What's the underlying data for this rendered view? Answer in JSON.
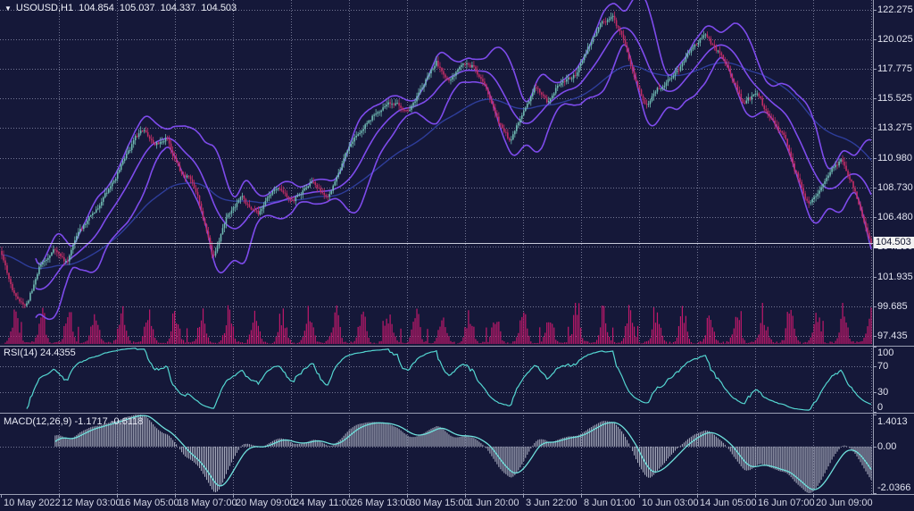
{
  "window": {
    "background": "#151839"
  },
  "header": {
    "dropdown_icon": "▼",
    "symbol_label": "USOUSD,H1",
    "open": "104.854",
    "high": "105.037",
    "low": "104.337",
    "close": "104.503"
  },
  "price_axis": {
    "labels": [
      "122.275",
      "120.025",
      "117.775",
      "115.525",
      "113.275",
      "110.980",
      "108.730",
      "106.480",
      "104.230",
      "101.935",
      "99.685",
      "97.435"
    ],
    "current_price": "104.503"
  },
  "rsi_panel": {
    "label": "RSI(14)",
    "value": "24.4355",
    "scale": [
      "100",
      "70",
      "30",
      "0"
    ],
    "levels": [
      70,
      30
    ]
  },
  "macd_panel": {
    "label": "MACD(12,26,9)",
    "main_value": "-1.1717",
    "signal_value": "-0.6118",
    "scale": [
      "1.4013",
      "0.00",
      "-2.0366"
    ]
  },
  "time_axis": {
    "labels": [
      "10 May 2022",
      "12 May 03:00",
      "16 May 05:00",
      "18 May 07:00",
      "20 May 09:00",
      "24 May 11:00",
      "26 May 13:00",
      "30 May 15:00",
      "1 Jun 20:00",
      "3 Jun 22:00",
      "8 Jun 01:00",
      "10 Jun 03:00",
      "14 Jun 05:00",
      "16 Jun 07:00",
      "20 Jun 09:00"
    ]
  },
  "colors": {
    "background": "#151839",
    "grid": "#8d91ac",
    "separator": "#9b9fb4",
    "axis_text": "#e2e4f0",
    "candle_up": "#6fbab2",
    "candle_down": "#c22d66",
    "volume": "#c0196b",
    "bollinger": "#7e4bec",
    "slow_ma": "#2e3d9a",
    "rsi_line": "#54d6d1",
    "macd_signal": "#6fe0dc",
    "macd_hist": "#a6aabc",
    "bid_line": "#c7cada",
    "badge_bg": "#f2f2f2",
    "badge_text": "#10142e"
  },
  "chart_data": {
    "type": "candlestick",
    "symbol": "USOUSD",
    "timeframe": "H1",
    "title": "USOUSD,H1 104.854 105.037 104.337 104.503",
    "ohlc_current": {
      "open": 104.854,
      "high": 105.037,
      "low": 104.337,
      "close": 104.503
    },
    "price_ticks": [
      122.275,
      120.025,
      117.775,
      115.525,
      113.275,
      110.98,
      108.73,
      106.48,
      104.23,
      101.935,
      99.685,
      97.435
    ],
    "price_axis_range": [
      97.435,
      122.275
    ],
    "time_ticks": [
      "10 May 2022",
      "12 May 03:00",
      "16 May 05:00",
      "18 May 07:00",
      "20 May 09:00",
      "24 May 11:00",
      "26 May 13:00",
      "30 May 15:00",
      "1 Jun 20:00",
      "3 Jun 22:00",
      "8 Jun 01:00",
      "10 Jun 03:00",
      "14 Jun 05:00",
      "16 Jun 07:00",
      "20 Jun 09:00"
    ],
    "close_path": {
      "t": [
        0,
        0.012,
        0.027,
        0.045,
        0.06,
        0.075,
        0.09,
        0.11,
        0.13,
        0.148,
        0.163,
        0.176,
        0.19,
        0.205,
        0.218,
        0.23,
        0.243,
        0.258,
        0.275,
        0.295,
        0.315,
        0.335,
        0.355,
        0.375,
        0.395,
        0.41,
        0.425,
        0.44,
        0.455,
        0.468,
        0.483,
        0.5,
        0.515,
        0.53,
        0.545,
        0.558,
        0.572,
        0.585,
        0.6,
        0.613,
        0.628,
        0.643,
        0.66,
        0.675,
        0.69,
        0.703,
        0.714,
        0.727,
        0.74,
        0.753,
        0.766,
        0.78,
        0.795,
        0.809,
        0.824,
        0.838,
        0.853,
        0.868,
        0.882,
        0.9,
        0.912,
        0.925,
        0.938,
        0.952,
        0.965,
        0.978,
        0.99,
        1.0
      ],
      "price": [
        103.6,
        100.9,
        99.6,
        102.8,
        103.9,
        103.2,
        105.9,
        107.2,
        109.3,
        111.8,
        113.3,
        111.9,
        112.7,
        110.0,
        109.6,
        106.8,
        103.7,
        106.6,
        108.3,
        106.7,
        108.9,
        107.9,
        109.4,
        108.4,
        111.6,
        113.2,
        114.4,
        115.5,
        115.7,
        115.1,
        116.9,
        118.6,
        117.0,
        118.3,
        118.0,
        116.5,
        114.0,
        112.6,
        114.9,
        116.6,
        115.5,
        116.9,
        117.6,
        119.8,
        121.4,
        121.9,
        120.2,
        117.2,
        114.9,
        116.1,
        116.7,
        117.6,
        119.2,
        120.4,
        119.2,
        117.4,
        115.3,
        115.9,
        113.9,
        112.4,
        109.6,
        107.4,
        107.9,
        109.6,
        110.7,
        108.9,
        106.4,
        104.5
      ]
    },
    "indicators": [
      {
        "name": "Bollinger Bands",
        "period": 20,
        "deviation": 2,
        "color": "#7e4bec"
      },
      {
        "name": "RSI",
        "period": 14,
        "last_value": 24.4355,
        "range": [
          0,
          100
        ],
        "levels": [
          70,
          30
        ],
        "color": "#54d6d1"
      },
      {
        "name": "MACD",
        "fast": 12,
        "slow": 26,
        "signal": 9,
        "last_main": -1.1717,
        "last_signal": -0.6118,
        "scale_max": 1.4013,
        "scale_min": -2.0366
      }
    ],
    "volume": {
      "shown": true,
      "color": "#c0196b"
    },
    "bars_rendered": 489,
    "grid": "dotted",
    "legend_position": "none"
  }
}
